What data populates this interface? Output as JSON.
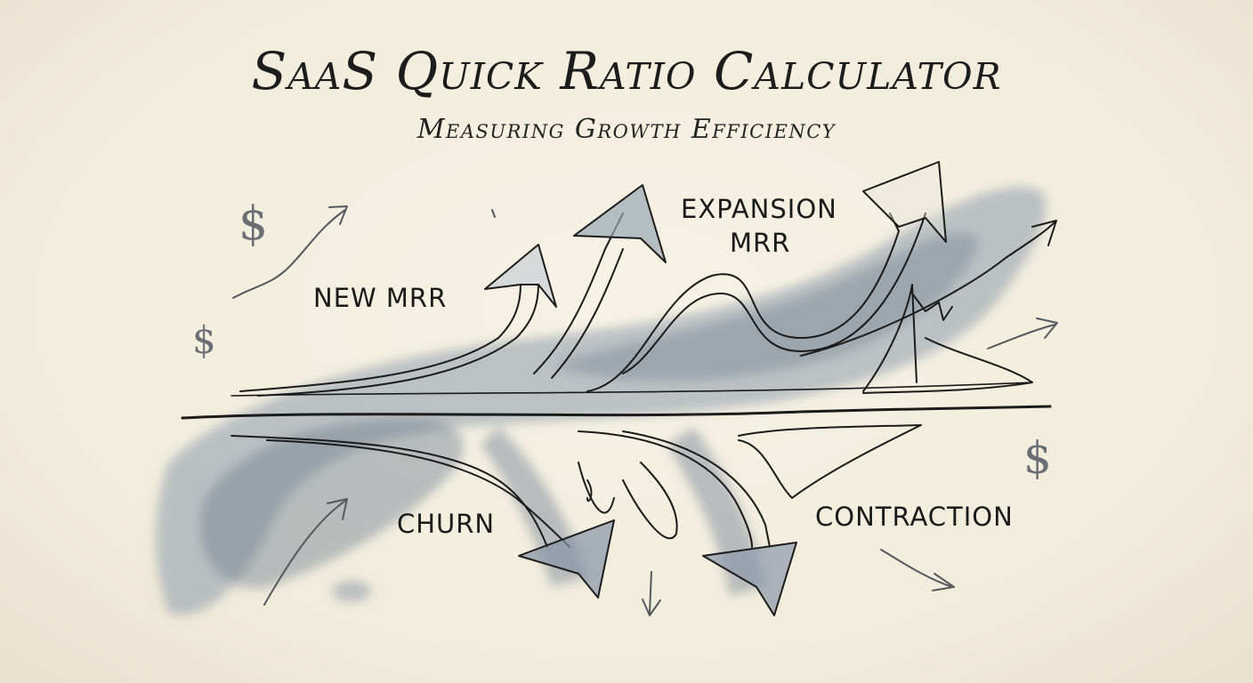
{
  "title": "SaaS Quick Ratio Calculator",
  "subtitle": "Measuring Growth Efficiency",
  "labels": {
    "new_mrr": "NEW MRR",
    "expansion_line1": "EXPANSION",
    "expansion_line2": "MRR",
    "churn": "CHURN",
    "contraction": "CONTRACTION"
  },
  "icons": {
    "currency": "$"
  },
  "colors": {
    "paper": "#f4efe1",
    "ink": "#1c1c1c",
    "wash": "#7d8c9c"
  }
}
